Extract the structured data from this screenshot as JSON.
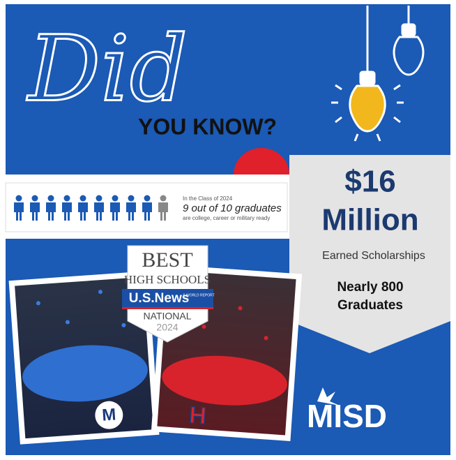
{
  "header": {
    "script_word": "Did",
    "subtitle": "YOU KNOW?"
  },
  "readiness": {
    "intro": "In the Class of 2024",
    "headline": "9 out of 10 graduates",
    "detail": "are college, career or military ready"
  },
  "scholarships": {
    "amount": "$16",
    "unit": "Million",
    "caption": "Earned Scholarships",
    "graduates_line1": "Nearly 800",
    "graduates_line2": "Graduates"
  },
  "badge": {
    "best": "BEST",
    "high_schools": "HIGH SCHOOLS",
    "brand": "U.S.News",
    "brand_sub": "& WORLD REPORT",
    "level": "NATIONAL",
    "year": "2024"
  },
  "logos": {
    "left_school": "M",
    "right_school": "H",
    "district": "MISD"
  }
}
